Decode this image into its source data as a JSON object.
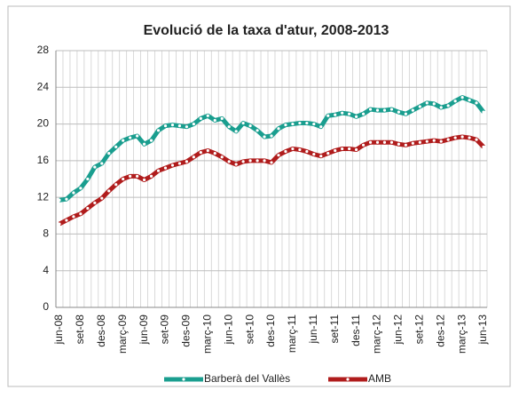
{
  "chart_data": {
    "type": "line",
    "title": "Evolució de la taxa d'atur, 2008-2013",
    "categories": [
      "jun-08",
      null,
      null,
      "set-08",
      null,
      null,
      "des-08",
      null,
      null,
      "març-09",
      null,
      null,
      "jun-09",
      null,
      null,
      "set-09",
      null,
      null,
      "des-09",
      null,
      null,
      "març-10",
      null,
      null,
      "jun-10",
      null,
      null,
      "set-10",
      null,
      null,
      "des-10",
      null,
      null,
      "març-11",
      null,
      null,
      "jun-11",
      null,
      null,
      "set-11",
      null,
      null,
      "des-11",
      null,
      null,
      "març-12",
      null,
      null,
      "jun-12",
      null,
      null,
      "set-12",
      null,
      null,
      "des-12",
      null,
      null,
      "març-13",
      null,
      null,
      "jun-13"
    ],
    "series": [
      {
        "name": "Barberà del Vallès",
        "color": "#1a9e8f",
        "values": [
          11.7,
          11.8,
          12.5,
          13.0,
          14.0,
          15.3,
          15.7,
          16.8,
          17.5,
          18.2,
          18.5,
          18.7,
          17.8,
          18.2,
          19.3,
          19.8,
          19.9,
          19.8,
          19.7,
          20.0,
          20.6,
          20.9,
          20.4,
          20.6,
          19.7,
          19.2,
          20.1,
          19.8,
          19.3,
          18.6,
          18.7,
          19.5,
          19.9,
          20.0,
          20.1,
          20.1,
          20.0,
          19.7,
          20.9,
          21.0,
          21.2,
          21.1,
          20.8,
          21.1,
          21.6,
          21.5,
          21.5,
          21.6,
          21.3,
          21.1,
          21.5,
          21.9,
          22.3,
          22.2,
          21.8,
          22.0,
          22.5,
          22.9,
          22.6,
          22.3,
          21.3
        ]
      },
      {
        "name": "AMB",
        "color": "#b01c1c",
        "values": [
          9.1,
          9.5,
          9.9,
          10.2,
          10.8,
          11.4,
          11.9,
          12.7,
          13.4,
          14.0,
          14.3,
          14.3,
          13.9,
          14.3,
          14.9,
          15.2,
          15.5,
          15.7,
          15.9,
          16.4,
          16.9,
          17.1,
          16.8,
          16.4,
          15.9,
          15.6,
          15.9,
          16.0,
          16.0,
          16.0,
          15.8,
          16.6,
          17.0,
          17.3,
          17.2,
          17.0,
          16.7,
          16.5,
          16.8,
          17.1,
          17.3,
          17.3,
          17.2,
          17.7,
          18.0,
          18.0,
          18.0,
          18.0,
          17.8,
          17.7,
          17.9,
          18.0,
          18.1,
          18.2,
          18.1,
          18.3,
          18.5,
          18.6,
          18.5,
          18.3,
          17.5
        ]
      }
    ],
    "ylim": [
      0,
      28
    ],
    "yticks": [
      0,
      4,
      8,
      12,
      16,
      20,
      24,
      28
    ],
    "grid": true,
    "legend": "bottom"
  }
}
